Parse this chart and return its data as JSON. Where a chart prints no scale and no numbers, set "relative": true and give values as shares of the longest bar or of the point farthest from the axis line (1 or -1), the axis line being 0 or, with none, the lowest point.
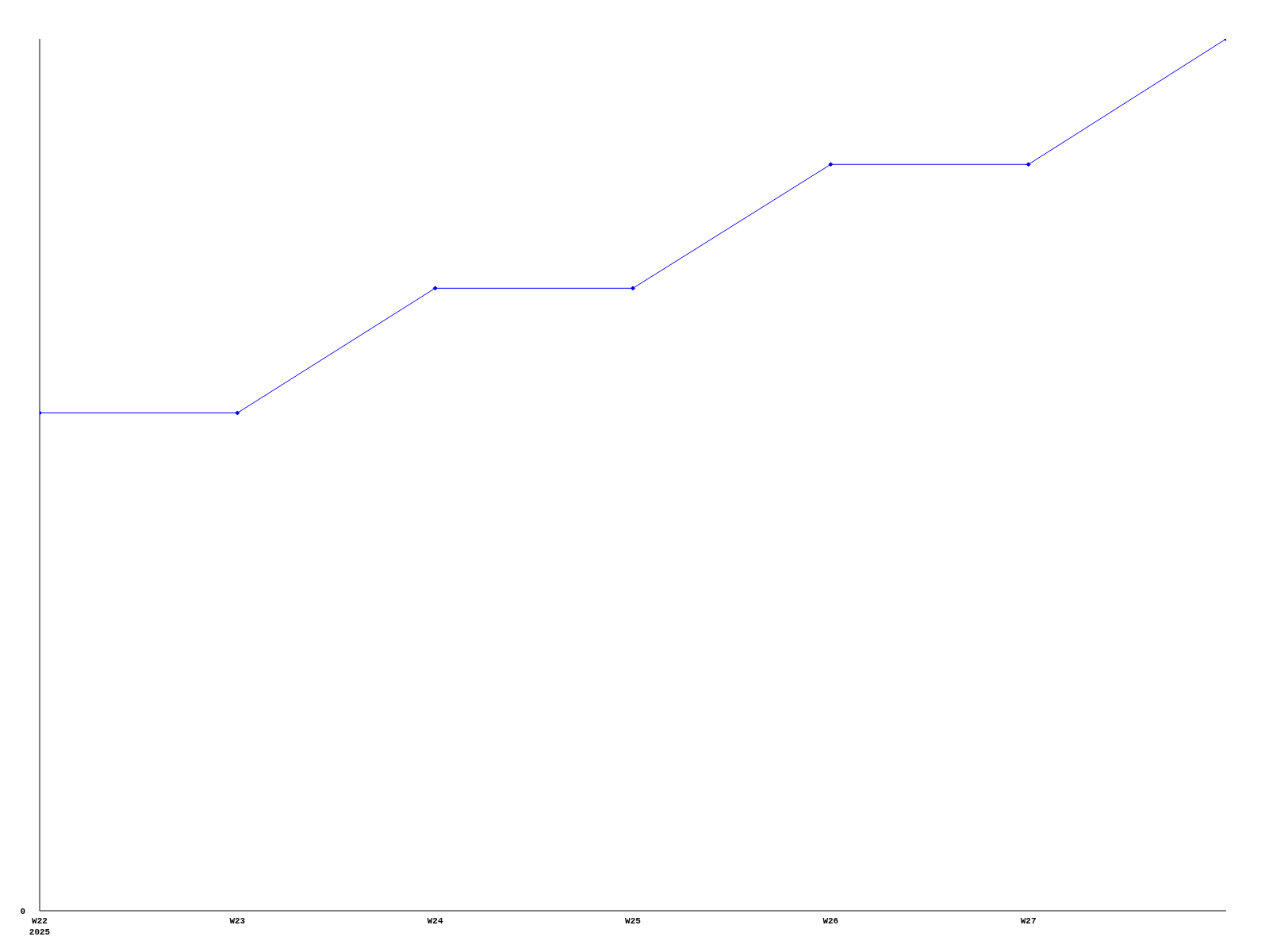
{
  "chart_data": {
    "type": "line",
    "relative": true,
    "categories": [
      "W22\n2025",
      "W23",
      "W24",
      "W25",
      "W26",
      "W27",
      null
    ],
    "series": [
      {
        "color": "#0000ff",
        "values": [
          0.571,
          0.571,
          0.714,
          0.714,
          0.856,
          0.856,
          1
        ]
      }
    ],
    "annotations": [
      "0"
    ],
    "marker": "diamond",
    "line_style": "solid",
    "grid": false,
    "legend": false
  }
}
